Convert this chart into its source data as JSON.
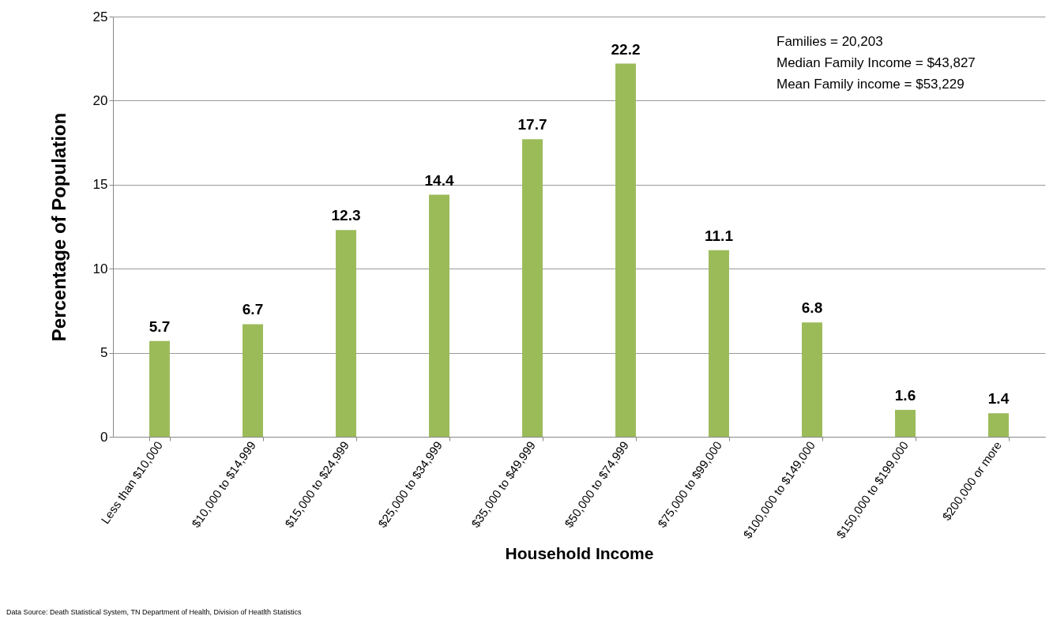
{
  "chart_data": {
    "type": "bar",
    "xlabel": "Household Income",
    "ylabel": "Percentage of Population",
    "categories": [
      "Less than $10,000",
      "$10,000 to $14,999",
      "$15,000 to $24,999",
      "$25,000 to $34,999",
      "$35,000 to $49,999",
      "$50,000 to $74,999",
      "$75,000 to $99,000",
      "$100,000 to $149,000",
      "$150,000 to $199,000",
      "$200,000 or more"
    ],
    "values": [
      5.7,
      6.7,
      12.3,
      14.4,
      17.7,
      22.2,
      11.1,
      6.8,
      1.6,
      1.4
    ],
    "color": "#9bbb59",
    "ylim": [
      0,
      25
    ],
    "yticks": [
      0,
      5,
      10,
      15,
      20,
      25
    ],
    "grid": "y",
    "data_labels": true,
    "annotations": [
      "Families = 20,203",
      "Median Family Income = $43,827",
      "Mean Family income = $53,229",
      "Data Source: Death Statistical  System, TN Department  of Health, Division  of Heatlth Statistics"
    ]
  }
}
